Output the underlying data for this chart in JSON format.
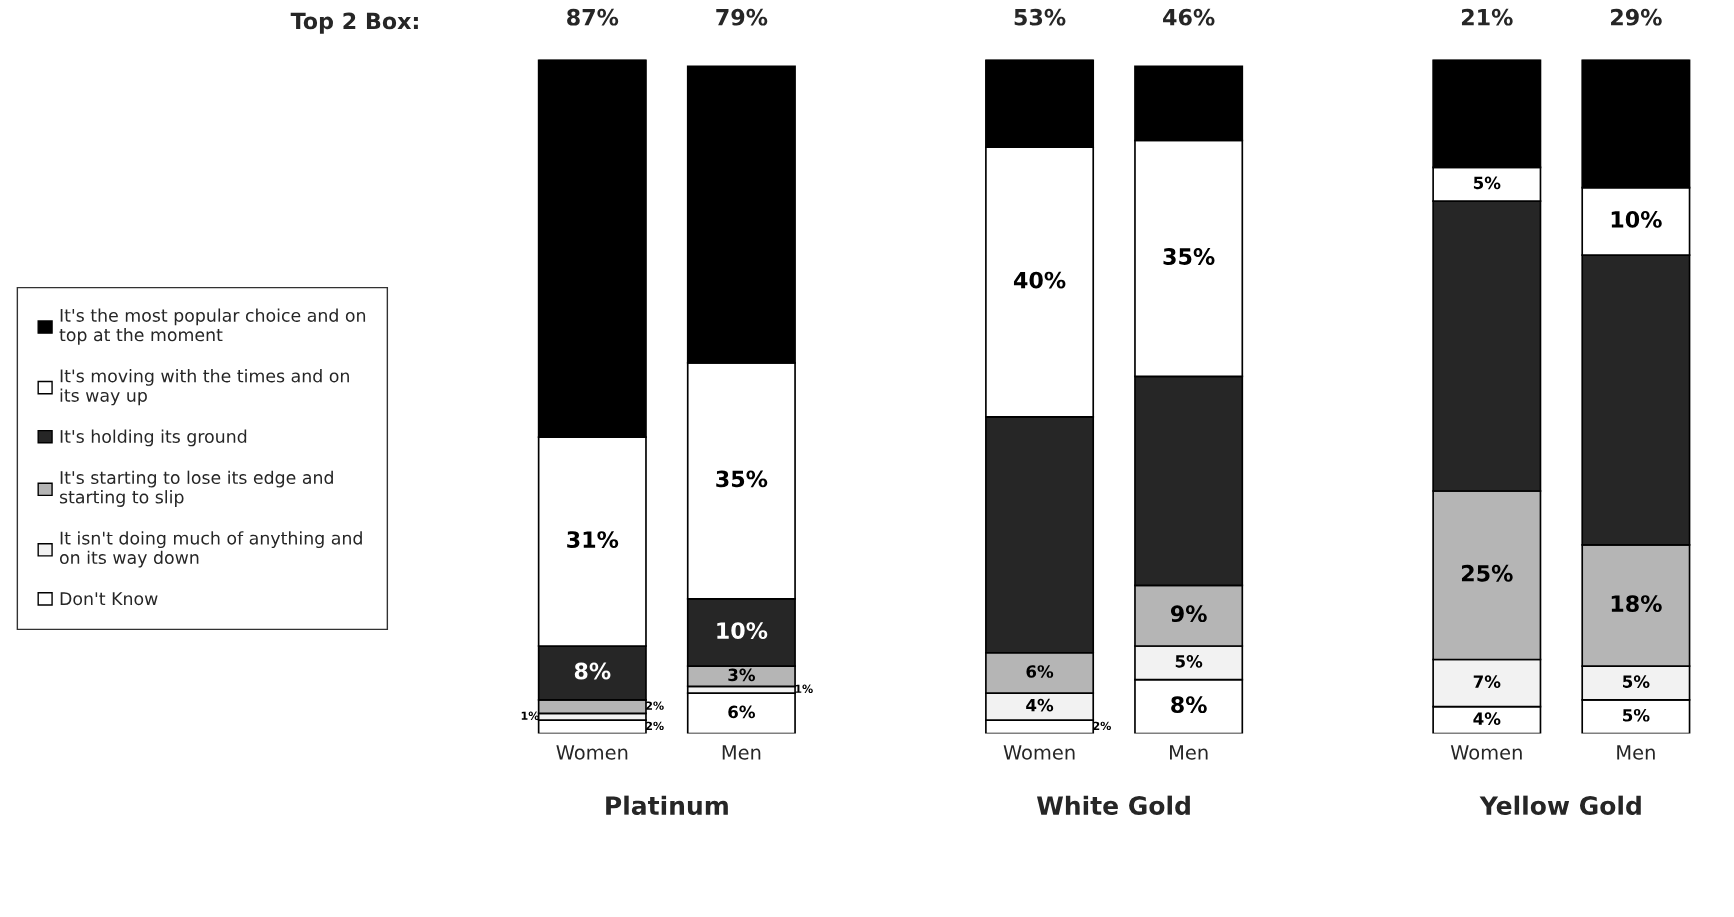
{
  "chart_data": {
    "type": "bar",
    "stacked": true,
    "categories": [
      "Women",
      "Men",
      "Women",
      "Men",
      "Women",
      "Men"
    ],
    "series": [
      {
        "name": "Don't Know",
        "color": "#ffffff",
        "values": [
          2,
          6,
          2,
          8,
          4,
          5
        ],
        "value_labels": [
          "2%",
          "6%",
          "2%",
          "8%",
          "4%",
          "5%"
        ]
      },
      {
        "name": "It isn't doing much of anything and\non its way down",
        "color": "#f2f2f2",
        "values": [
          1,
          1,
          4,
          5,
          7,
          5
        ],
        "value_labels": [
          "1%",
          "1%",
          "4%",
          "5%",
          "7%",
          "5%"
        ]
      },
      {
        "name": "It's starting to lose its edge and\nstarting to slip",
        "color": "#b5b5b5",
        "values": [
          2,
          3,
          6,
          9,
          25,
          18
        ],
        "value_labels": [
          "2%",
          "3%",
          "6%",
          "9%",
          "25%",
          "18%"
        ]
      },
      {
        "name": "It's holding its ground",
        "color": "#262626",
        "values": [
          8,
          10,
          35,
          31,
          43,
          43
        ],
        "value_labels": [
          "8%",
          "10%",
          null,
          null,
          null,
          null
        ]
      },
      {
        "name": "It's moving with the times and on\nits way up",
        "color": "#ffffff",
        "values": [
          31,
          35,
          40,
          35,
          5,
          10
        ],
        "value_labels": [
          "31%",
          "35%",
          "40%",
          "35%",
          "5%",
          "10%"
        ]
      },
      {
        "name": "It's the most popular choice and on\ntop at the moment",
        "color": "#000000",
        "values": [
          56,
          44,
          13,
          11,
          16,
          19
        ],
        "value_labels": [
          null,
          null,
          null,
          null,
          null,
          null
        ]
      }
    ],
    "annotations": [
      "Top 2 Box:",
      "87%",
      "79%",
      "53%",
      "46%",
      "21%",
      "29%",
      "Platinum",
      "White Gold",
      "Yellow Gold"
    ],
    "legend": "left",
    "grid": false
  }
}
